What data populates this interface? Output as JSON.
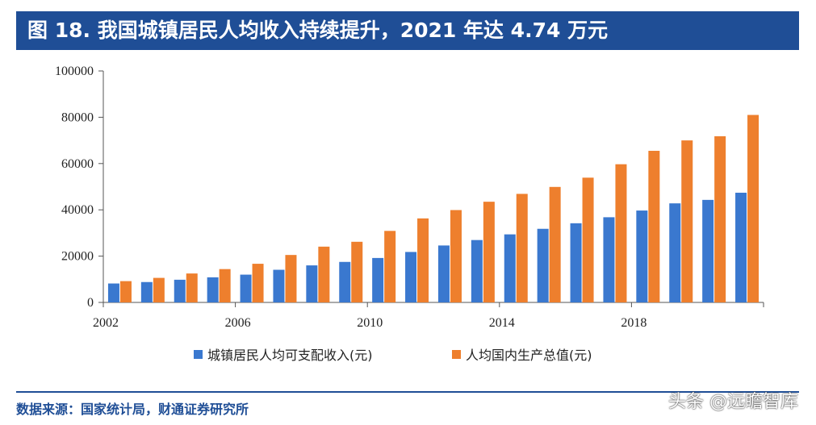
{
  "header": {
    "title": "图 18. 我国城镇居民人均收入持续提升，2021 年达 4.74 万元"
  },
  "footer": {
    "source": "数据来源：国家统计局，财通证券研究所",
    "watermark": "头条 @远瞻智库"
  },
  "colors": {
    "title_bg": "#1f4e96",
    "series_income": "#3a78cf",
    "series_gdp": "#ee7f2d",
    "axis": "#555555"
  },
  "chart_data": {
    "type": "bar",
    "title": "",
    "xlabel": "",
    "ylabel": "",
    "ylim": [
      0,
      100000
    ],
    "yticks": [
      "0",
      "20000",
      "40000",
      "60000",
      "80000",
      "100000"
    ],
    "categories": [
      "2002",
      "2003",
      "2004",
      "2005",
      "2006",
      "2007",
      "2008",
      "2009",
      "2010",
      "2011",
      "2012",
      "2013",
      "2014",
      "2015",
      "2016",
      "2017",
      "2018",
      "2019",
      "2020",
      "2021"
    ],
    "xtick_labels": [
      "2002",
      "2006",
      "2010",
      "2014",
      "2018"
    ],
    "legend_position": "bottom",
    "grid": false,
    "series": [
      {
        "name": "城镇居民人均可支配收入(元)",
        "values": [
          8177,
          8800,
          9800,
          10850,
          12000,
          14100,
          16000,
          17500,
          19200,
          21800,
          24600,
          26950,
          29400,
          31800,
          34200,
          36800,
          39700,
          42800,
          44300,
          47400
        ]
      },
      {
        "name": "人均国内生产总值(元)",
        "values": [
          9200,
          10600,
          12500,
          14400,
          16700,
          20500,
          24100,
          26200,
          30900,
          36300,
          39900,
          43500,
          46900,
          49900,
          53900,
          59700,
          65500,
          70000,
          71800,
          81000
        ]
      }
    ]
  }
}
